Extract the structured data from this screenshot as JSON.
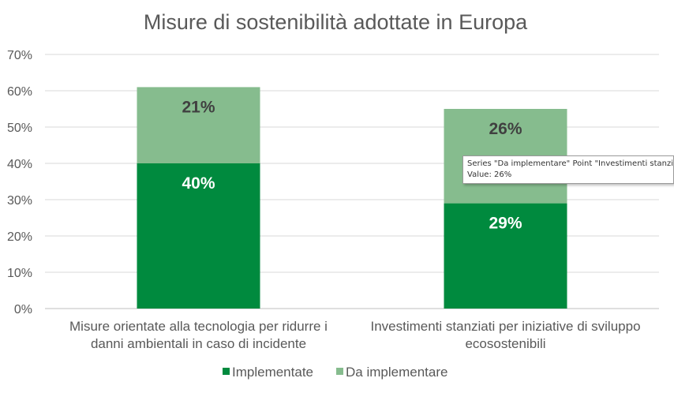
{
  "chart_data": {
    "type": "bar",
    "stacked": true,
    "title": "Misure di sostenibilità adottate in Europa",
    "categories": [
      [
        "Misure orientate alla tecnologia per ridurre i",
        "danni ambientali in caso di incidente"
      ],
      [
        "Investimenti stanziati per iniziative di sviluppo",
        "ecosostenibili"
      ]
    ],
    "series": [
      {
        "name": "Implementate",
        "values": [
          40,
          29
        ],
        "labels": [
          "40%",
          "29%"
        ],
        "color": "#008a3e",
        "label_color": "#ffffff"
      },
      {
        "name": "Da implementare",
        "values": [
          21,
          26
        ],
        "labels": [
          "21%",
          "26%"
        ],
        "color": "#86bc8e",
        "label_color": "#404040"
      }
    ],
    "ylim": [
      0,
      70
    ],
    "yticks": [
      "0%",
      "10%",
      "20%",
      "30%",
      "40%",
      "50%",
      "60%",
      "70%"
    ],
    "grid": true,
    "legend_position": "bottom"
  },
  "tooltip": {
    "line1": "Series \"Da implementare\" Point \"Investimenti stanziati per iniziative di sviluppo ecosostenibili\"",
    "line2": "Value: 26%"
  }
}
